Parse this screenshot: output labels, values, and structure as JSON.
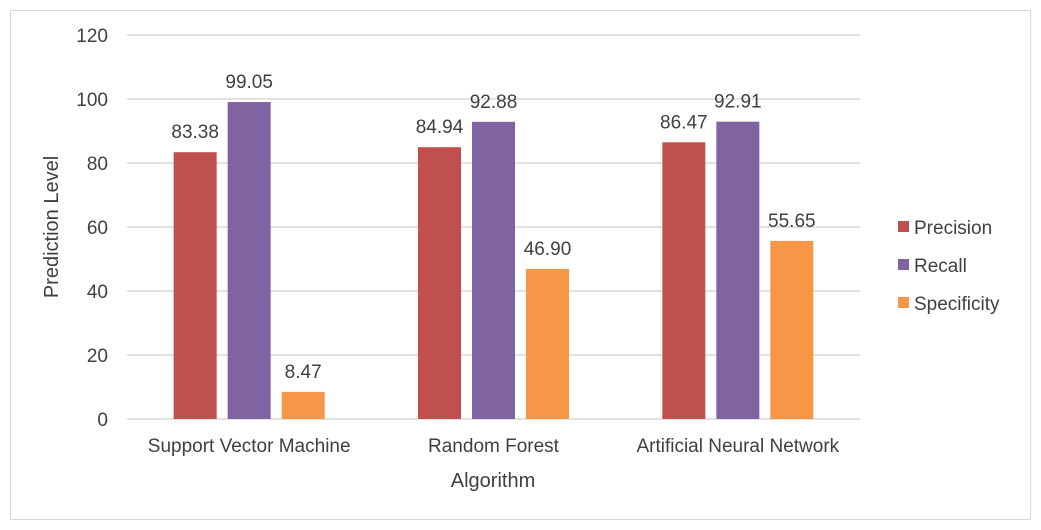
{
  "chart_data": {
    "type": "bar",
    "title": "",
    "xlabel": "Algorithm",
    "ylabel": "Prediction Level",
    "ylim": [
      0,
      120
    ],
    "yticks": [
      0,
      20,
      40,
      60,
      80,
      100,
      120
    ],
    "grid": true,
    "legend_position": "right",
    "categories": [
      "Support Vector Machine",
      "Random Forest",
      "Artificial Neural Network"
    ],
    "series": [
      {
        "name": "Precision",
        "color": "#C0504D",
        "values": [
          83.38,
          84.94,
          86.47
        ],
        "labels": [
          "83.38",
          "84.94",
          "86.47"
        ]
      },
      {
        "name": "Recall",
        "color": "#8064A2",
        "values": [
          99.05,
          92.88,
          92.91
        ],
        "labels": [
          "99.05",
          "92.88",
          "92.91"
        ]
      },
      {
        "name": "Specificity",
        "color": "#F79646",
        "values": [
          8.47,
          46.9,
          55.65
        ],
        "labels": [
          "8.47",
          "46.90",
          "55.65"
        ]
      }
    ]
  }
}
